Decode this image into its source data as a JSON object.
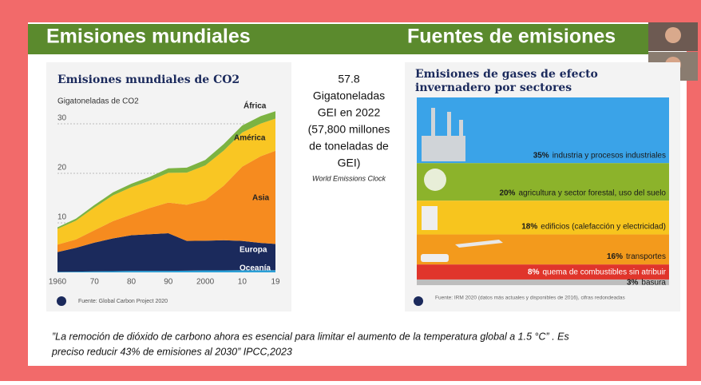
{
  "header": {
    "left_title": "Emisiones mundiales",
    "right_title": "Fuentes de emisiones"
  },
  "middle": {
    "lines": [
      "57.8",
      "Gigatoneladas",
      "GEI en 2022",
      "(57,800 millones",
      "de toneladas de",
      "GEI)"
    ],
    "source": "World Emissions Clock"
  },
  "quote": {
    "lines": [
      "”La remoción de dióxido de carbono ahora es esencial para limitar el aumento de la temperatura global a 1.5 °C” . Es",
      "preciso reducir 43% de emisiones al 2030” IPCC,2023"
    ]
  },
  "chart_data": [
    {
      "type": "stacked_area",
      "title": "Emisiones mundiales de CO2",
      "y_label": "Gigatoneladas de CO2",
      "source": "Fuente: Global Carbon Project 2020",
      "x": [
        1960,
        1965,
        1970,
        1975,
        1980,
        1985,
        1990,
        1995,
        2000,
        2005,
        2010,
        2015,
        2019
      ],
      "xlim": [
        1960,
        2019
      ],
      "ylim": [
        0,
        35
      ],
      "xticks": [
        1960,
        {
          "value": 1970,
          "label": "70"
        },
        {
          "value": 1980,
          "label": "80"
        },
        {
          "value": 1990,
          "label": "90"
        },
        2000,
        {
          "value": 2010,
          "label": "10"
        },
        {
          "value": 2019,
          "label": "19"
        }
      ],
      "yticks": [
        10,
        20,
        30
      ],
      "grid": true,
      "series": [
        {
          "name": "Oceanía",
          "color": "#2a9fd6",
          "values": [
            0.1,
            0.15,
            0.2,
            0.25,
            0.3,
            0.3,
            0.3,
            0.35,
            0.4,
            0.4,
            0.45,
            0.45,
            0.45
          ]
        },
        {
          "name": "Europa",
          "color": "#1b2a5c",
          "values": [
            4.0,
            4.8,
            5.8,
            6.6,
            7.2,
            7.4,
            7.6,
            6.0,
            6.0,
            6.1,
            5.9,
            5.5,
            5.3
          ]
        },
        {
          "name": "Asia",
          "color": "#f68b1f",
          "values": [
            1.5,
            1.7,
            2.5,
            3.5,
            4.2,
            5.3,
            6.2,
            7.3,
            8.2,
            11.0,
            15.0,
            17.5,
            18.8
          ]
        },
        {
          "name": "América",
          "color": "#f9c623",
          "values": [
            3.2,
            3.8,
            4.6,
            5.2,
            5.5,
            5.5,
            6.0,
            6.5,
            7.0,
            7.1,
            6.9,
            6.6,
            6.5
          ]
        },
        {
          "name": "África",
          "color": "#7cb342",
          "values": [
            0.3,
            0.4,
            0.5,
            0.6,
            0.7,
            0.8,
            0.9,
            1.0,
            1.1,
            1.3,
            1.4,
            1.5,
            1.5
          ]
        }
      ]
    },
    {
      "type": "stacked_band",
      "title": "Emisiones de gases de efecto invernadero por sectores",
      "source": "Fuente: IRM 2020 (datos más actuales y disponibles de 2016), cifras redondeadas",
      "categories": [
        "industria y procesos industriales",
        "agricultura y sector forestal, uso del suelo",
        "edificios (calefacción y electricidad)",
        "transportes",
        "quema de combustibles sin atribuir",
        "basura"
      ],
      "values": [
        35,
        20,
        18,
        16,
        8,
        3
      ],
      "value_labels": [
        "35%",
        "20%",
        "18%",
        "16%",
        "8%",
        "3%"
      ],
      "colors": [
        "#3aa3e8",
        "#8cb32b",
        "#f7c51e",
        "#f39a1c",
        "#e0352b",
        "#bdbdbd"
      ]
    }
  ]
}
